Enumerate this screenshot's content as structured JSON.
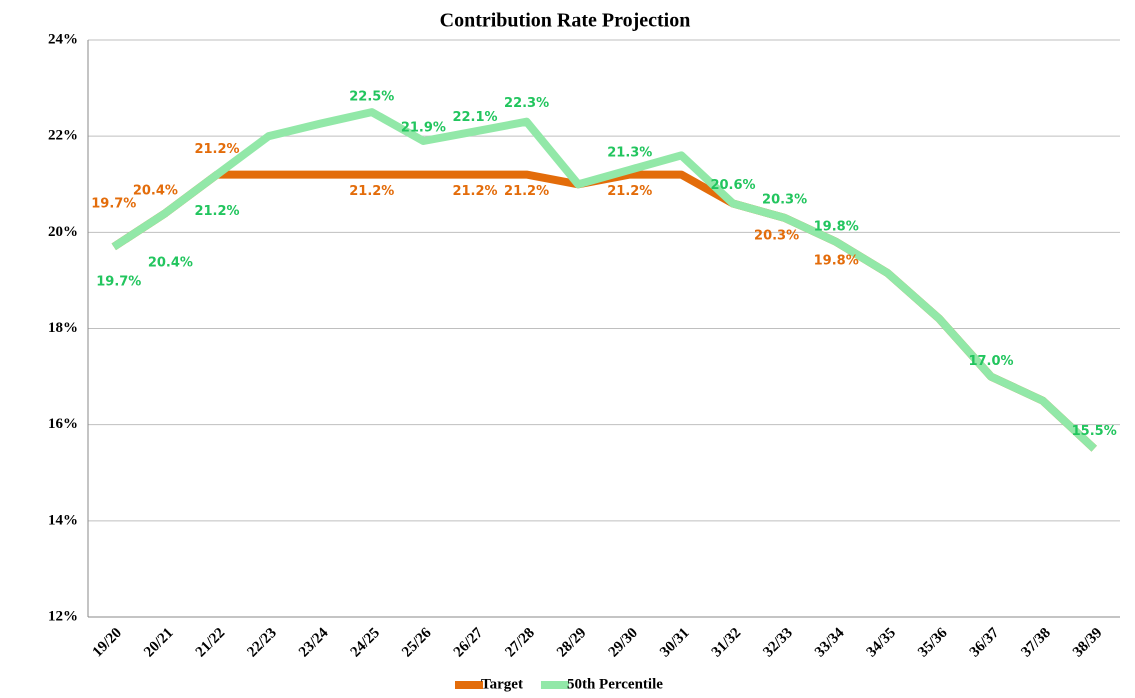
{
  "chart_data": {
    "type": "line",
    "title": "Contribution Rate Projection",
    "categories": [
      "19/20",
      "20/21",
      "21/22",
      "22/23",
      "23/24",
      "24/25",
      "25/26",
      "26/27",
      "27/28",
      "28/29",
      "29/30",
      "30/31",
      "31/32",
      "32/33",
      "33/34",
      "34/35",
      "35/36",
      "36/37",
      "37/38",
      "38/39"
    ],
    "series": [
      {
        "name": "Target",
        "color": "#e36c0a",
        "values": [
          19.7,
          20.4,
          21.2,
          21.2,
          21.2,
          21.2,
          21.2,
          21.2,
          21.2,
          21.0,
          21.2,
          21.2,
          20.6,
          20.3,
          19.8,
          19.15,
          18.2,
          17.0,
          16.5,
          15.5
        ],
        "value_labels": [
          "19.7%",
          "20.4%",
          "21.2%",
          null,
          null,
          "21.2%",
          null,
          "21.2%",
          "21.2%",
          null,
          "21.2%",
          null,
          null,
          "20.3%",
          "19.8%",
          null,
          null,
          null,
          null,
          null
        ]
      },
      {
        "name": "50th Percentile",
        "color": "#92e8a8",
        "values": [
          19.7,
          20.4,
          21.2,
          22.0,
          22.26,
          22.5,
          21.9,
          22.1,
          22.3,
          21.0,
          21.3,
          21.6,
          20.6,
          20.3,
          19.8,
          19.15,
          18.2,
          17.0,
          16.5,
          15.5
        ],
        "value_labels": [
          "19.7%",
          "20.4%",
          "21.2%",
          null,
          null,
          "22.5%",
          "21.9%",
          "22.1%",
          "22.3%",
          null,
          "21.3%",
          null,
          "20.6%",
          "20.3%",
          "19.8%",
          null,
          null,
          "17.0%",
          null,
          "15.5%"
        ]
      }
    ],
    "ylim": [
      12,
      24
    ],
    "yticks": [
      {
        "value": 12,
        "label": "12%"
      },
      {
        "value": 14,
        "label": "14%"
      },
      {
        "value": 16,
        "label": "16%"
      },
      {
        "value": 18,
        "label": "18%"
      },
      {
        "value": 20,
        "label": "20%"
      },
      {
        "value": 22,
        "label": "22%"
      },
      {
        "value": 24,
        "label": "24%"
      }
    ],
    "grid": true,
    "legend": "bottom"
  }
}
